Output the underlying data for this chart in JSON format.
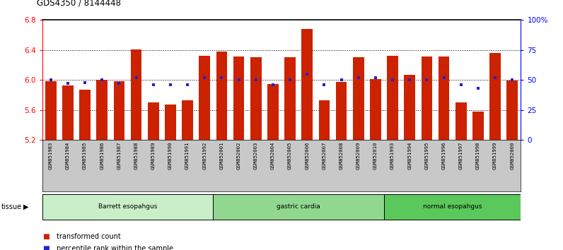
{
  "title": "GDS4350 / 8144448",
  "samples": [
    "GSM851983",
    "GSM851984",
    "GSM851985",
    "GSM851986",
    "GSM851987",
    "GSM851988",
    "GSM851989",
    "GSM851990",
    "GSM851991",
    "GSM851992",
    "GSM852001",
    "GSM852002",
    "GSM852003",
    "GSM852004",
    "GSM852005",
    "GSM852006",
    "GSM852007",
    "GSM852008",
    "GSM852009",
    "GSM852010",
    "GSM851993",
    "GSM851994",
    "GSM851995",
    "GSM851996",
    "GSM851997",
    "GSM851998",
    "GSM851999",
    "GSM852000"
  ],
  "bar_values": [
    5.98,
    5.93,
    5.87,
    6.0,
    5.98,
    6.41,
    5.7,
    5.67,
    5.73,
    6.32,
    6.38,
    6.31,
    6.3,
    5.95,
    6.3,
    6.68,
    5.73,
    5.97,
    6.3,
    6.01,
    6.32,
    6.07,
    6.31,
    6.31,
    5.7,
    5.58,
    6.36,
    5.99
  ],
  "percentile_values": [
    50,
    47,
    48,
    50,
    47,
    52,
    46,
    46,
    46,
    52,
    52,
    50,
    50,
    46,
    50,
    55,
    46,
    50,
    52,
    52,
    50,
    50,
    50,
    52,
    46,
    43,
    52,
    50
  ],
  "groups": [
    {
      "label": "Barrett esopahgus",
      "start": 0,
      "end": 9,
      "color": "#c8efc8"
    },
    {
      "label": "gastric cardia",
      "start": 10,
      "end": 19,
      "color": "#90d890"
    },
    {
      "label": "normal esopahgus",
      "start": 20,
      "end": 27,
      "color": "#5ac85a"
    }
  ],
  "ylim_left": [
    5.2,
    6.8
  ],
  "ylim_right": [
    0,
    100
  ],
  "yticks_left": [
    5.2,
    5.6,
    6.0,
    6.4,
    6.8
  ],
  "yticks_right": [
    0,
    25,
    50,
    75,
    100
  ],
  "ytick_labels_right": [
    "0",
    "25",
    "50",
    "75",
    "100%"
  ],
  "bar_color": "#cc2200",
  "dot_color": "#2222cc",
  "tick_area_color": "#c8c8c8",
  "legend_items": [
    {
      "color": "#cc2200",
      "label": "transformed count"
    },
    {
      "color": "#2222cc",
      "label": "percentile rank within the sample"
    }
  ]
}
